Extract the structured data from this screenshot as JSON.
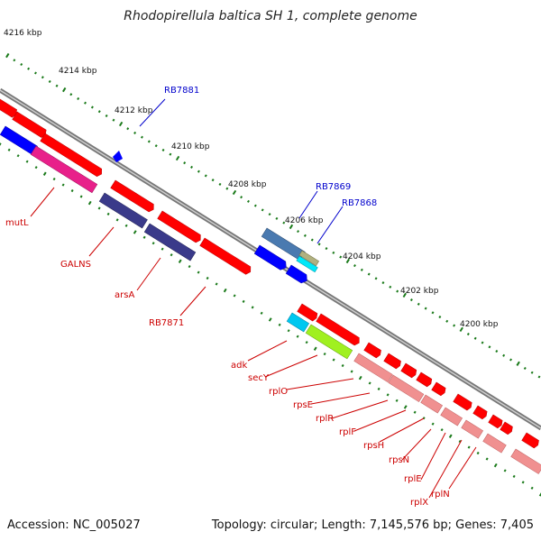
{
  "title": "Rhodopirellula baltica SH 1, complete genome",
  "accession": "Accession: NC_005027",
  "topology": "Topology: circular; Length: 7,145,576 bp; Genes: 7,405",
  "ruler_labels": [
    "4216 kbp",
    "4214 kbp",
    "4212 kbp",
    "4210 kbp",
    "4208 kbp",
    "4206 kbp",
    "4204 kbp",
    "4202 kbp",
    "4200 kbp"
  ],
  "colors": {
    "red": "#ff0000",
    "pink_light": "#f09090",
    "blue": "#0000ff",
    "navy": "#3a3a8a",
    "magenta": "#e8208a",
    "steel": "#4a7ab0",
    "cyan": "#00c8f0",
    "lime": "#a0f020",
    "khaki": "#b0b080",
    "green_tick": "#1a7a1a",
    "backbone": "#888888",
    "label_red": "#cc0000",
    "label_blue": "#0000cc"
  },
  "blue_labels": [
    "RB7881",
    "RB7869",
    "RB7868"
  ],
  "red_labels": [
    "mutL",
    "GALNS",
    "arsA",
    "RB7871",
    "adk",
    "secY",
    "rplO",
    "rpsE",
    "rplR",
    "rplF",
    "rpsH",
    "rpsN",
    "rplE",
    "rplX",
    "rplN"
  ]
}
